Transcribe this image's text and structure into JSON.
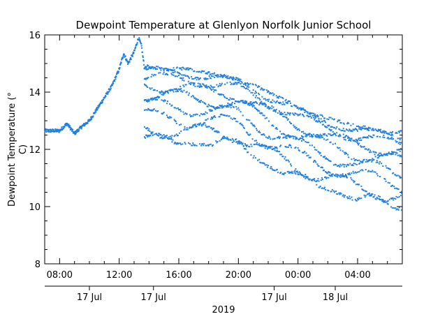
{
  "chart_data": {
    "type": "scatter",
    "title": "Dewpoint Temperature at Glenlyon Norfolk Junior School",
    "ylabel_lines": [
      "Dewpoint Temperature (°",
      "C)"
    ],
    "xlabel": "2019",
    "ylim": [
      8,
      16
    ],
    "yticks": [
      8,
      10,
      12,
      14,
      16
    ],
    "x_range_hours": [
      7,
      31
    ],
    "x_time_ticks": [
      {
        "hour": 8,
        "label": "08:00"
      },
      {
        "hour": 12,
        "label": "12:00"
      },
      {
        "hour": 16,
        "label": "16:00"
      },
      {
        "hour": 20,
        "label": "20:00"
      },
      {
        "hour": 24,
        "label": "00:00"
      },
      {
        "hour": 28,
        "label": "04:00"
      }
    ],
    "x_date_ticks": [
      {
        "hour": 10,
        "label": "17 Jul"
      },
      {
        "hour": 14.3,
        "label": "17 Jul"
      },
      {
        "hour": 22.4,
        "label": "17 Jul"
      },
      {
        "hour": 26.5,
        "label": "18 Jul"
      }
    ],
    "series_color": "#1f7fe0",
    "trend_points": [
      [
        7.0,
        12.65
      ],
      [
        7.5,
        12.65
      ],
      [
        8.0,
        12.65
      ],
      [
        8.5,
        12.9
      ],
      [
        9.0,
        12.55
      ],
      [
        9.5,
        12.8
      ],
      [
        10.0,
        13.0
      ],
      [
        10.5,
        13.4
      ],
      [
        11.0,
        13.8
      ],
      [
        11.5,
        14.2
      ],
      [
        12.0,
        14.8
      ],
      [
        12.3,
        15.35
      ],
      [
        12.6,
        15.0
      ],
      [
        13.0,
        15.4
      ],
      [
        13.3,
        15.9
      ],
      [
        13.5,
        15.6
      ],
      [
        13.7,
        14.8
      ]
    ],
    "bands": [
      {
        "x_start": 13.7,
        "x_end": 31.0,
        "top": [
          [
            13.7,
            14.9
          ],
          [
            16.0,
            14.85
          ],
          [
            20.0,
            14.5
          ],
          [
            22.0,
            14.0
          ],
          [
            24.0,
            13.5
          ],
          [
            26.0,
            13.1
          ],
          [
            28.0,
            12.8
          ],
          [
            31.0,
            12.6
          ]
        ],
        "bottom": [
          [
            13.7,
            12.3
          ],
          [
            16.0,
            12.2
          ],
          [
            20.0,
            12.1
          ],
          [
            22.0,
            11.4
          ],
          [
            24.0,
            10.9
          ],
          [
            26.0,
            10.6
          ],
          [
            28.0,
            10.2
          ],
          [
            31.0,
            9.9
          ]
        ]
      }
    ]
  }
}
